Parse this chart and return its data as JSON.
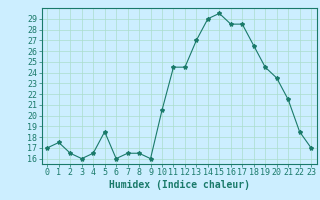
{
  "x": [
    0,
    1,
    2,
    3,
    4,
    5,
    6,
    7,
    8,
    9,
    10,
    11,
    12,
    13,
    14,
    15,
    16,
    17,
    18,
    19,
    20,
    21,
    22,
    23
  ],
  "y": [
    17,
    17.5,
    16.5,
    16,
    16.5,
    18.5,
    16,
    16.5,
    16.5,
    16,
    20.5,
    24.5,
    24.5,
    27,
    29,
    29.5,
    28.5,
    28.5,
    26.5,
    24.5,
    23.5,
    21.5,
    18.5,
    17
  ],
  "line_color": "#1a7a6a",
  "marker": "*",
  "marker_size": 3,
  "background_color": "#cceeff",
  "grid_color": "#aaddcc",
  "xlabel": "Humidex (Indice chaleur)",
  "ylabel_ticks": [
    16,
    17,
    18,
    19,
    20,
    21,
    22,
    23,
    24,
    25,
    26,
    27,
    28,
    29
  ],
  "ylim": [
    15.5,
    30
  ],
  "xlim": [
    -0.5,
    23.5
  ],
  "axis_color": "#1a7a6a",
  "tick_label_color": "#1a7a6a",
  "xlabel_color": "#1a7a6a",
  "label_fontsize": 7,
  "tick_fontsize": 6
}
